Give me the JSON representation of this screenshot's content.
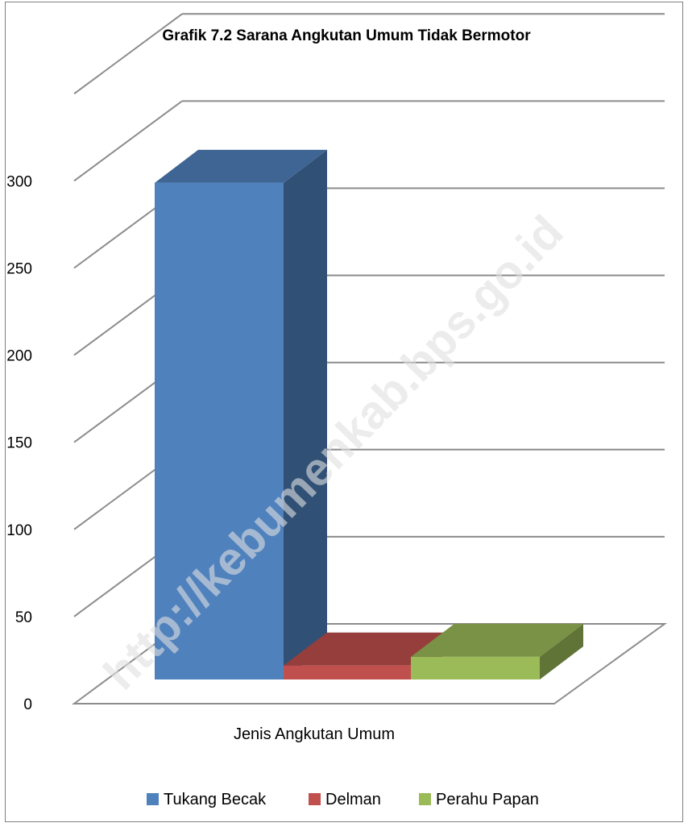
{
  "chart_data": {
    "type": "bar",
    "title": "Grafik 7.2 Sarana Angkutan Umum Tidak Bermotor",
    "xlabel": "Jenis Angkutan Umum",
    "ylabel": "",
    "ylim": [
      0,
      350
    ],
    "yticks": [
      0,
      50,
      100,
      150,
      200,
      250,
      300
    ],
    "grid": true,
    "legend_position": "bottom",
    "categories": [
      "Jenis Angkutan Umum"
    ],
    "series": [
      {
        "name": "Tukang Becak",
        "values": [
          285
        ],
        "color": "#4f81bd"
      },
      {
        "name": "Delman",
        "values": [
          8
        ],
        "color": "#c0504d"
      },
      {
        "name": "Perahu Papan",
        "values": [
          13
        ],
        "color": "#9bbb59"
      }
    ]
  },
  "watermark": "http://kebumenkab.bps.go.id"
}
